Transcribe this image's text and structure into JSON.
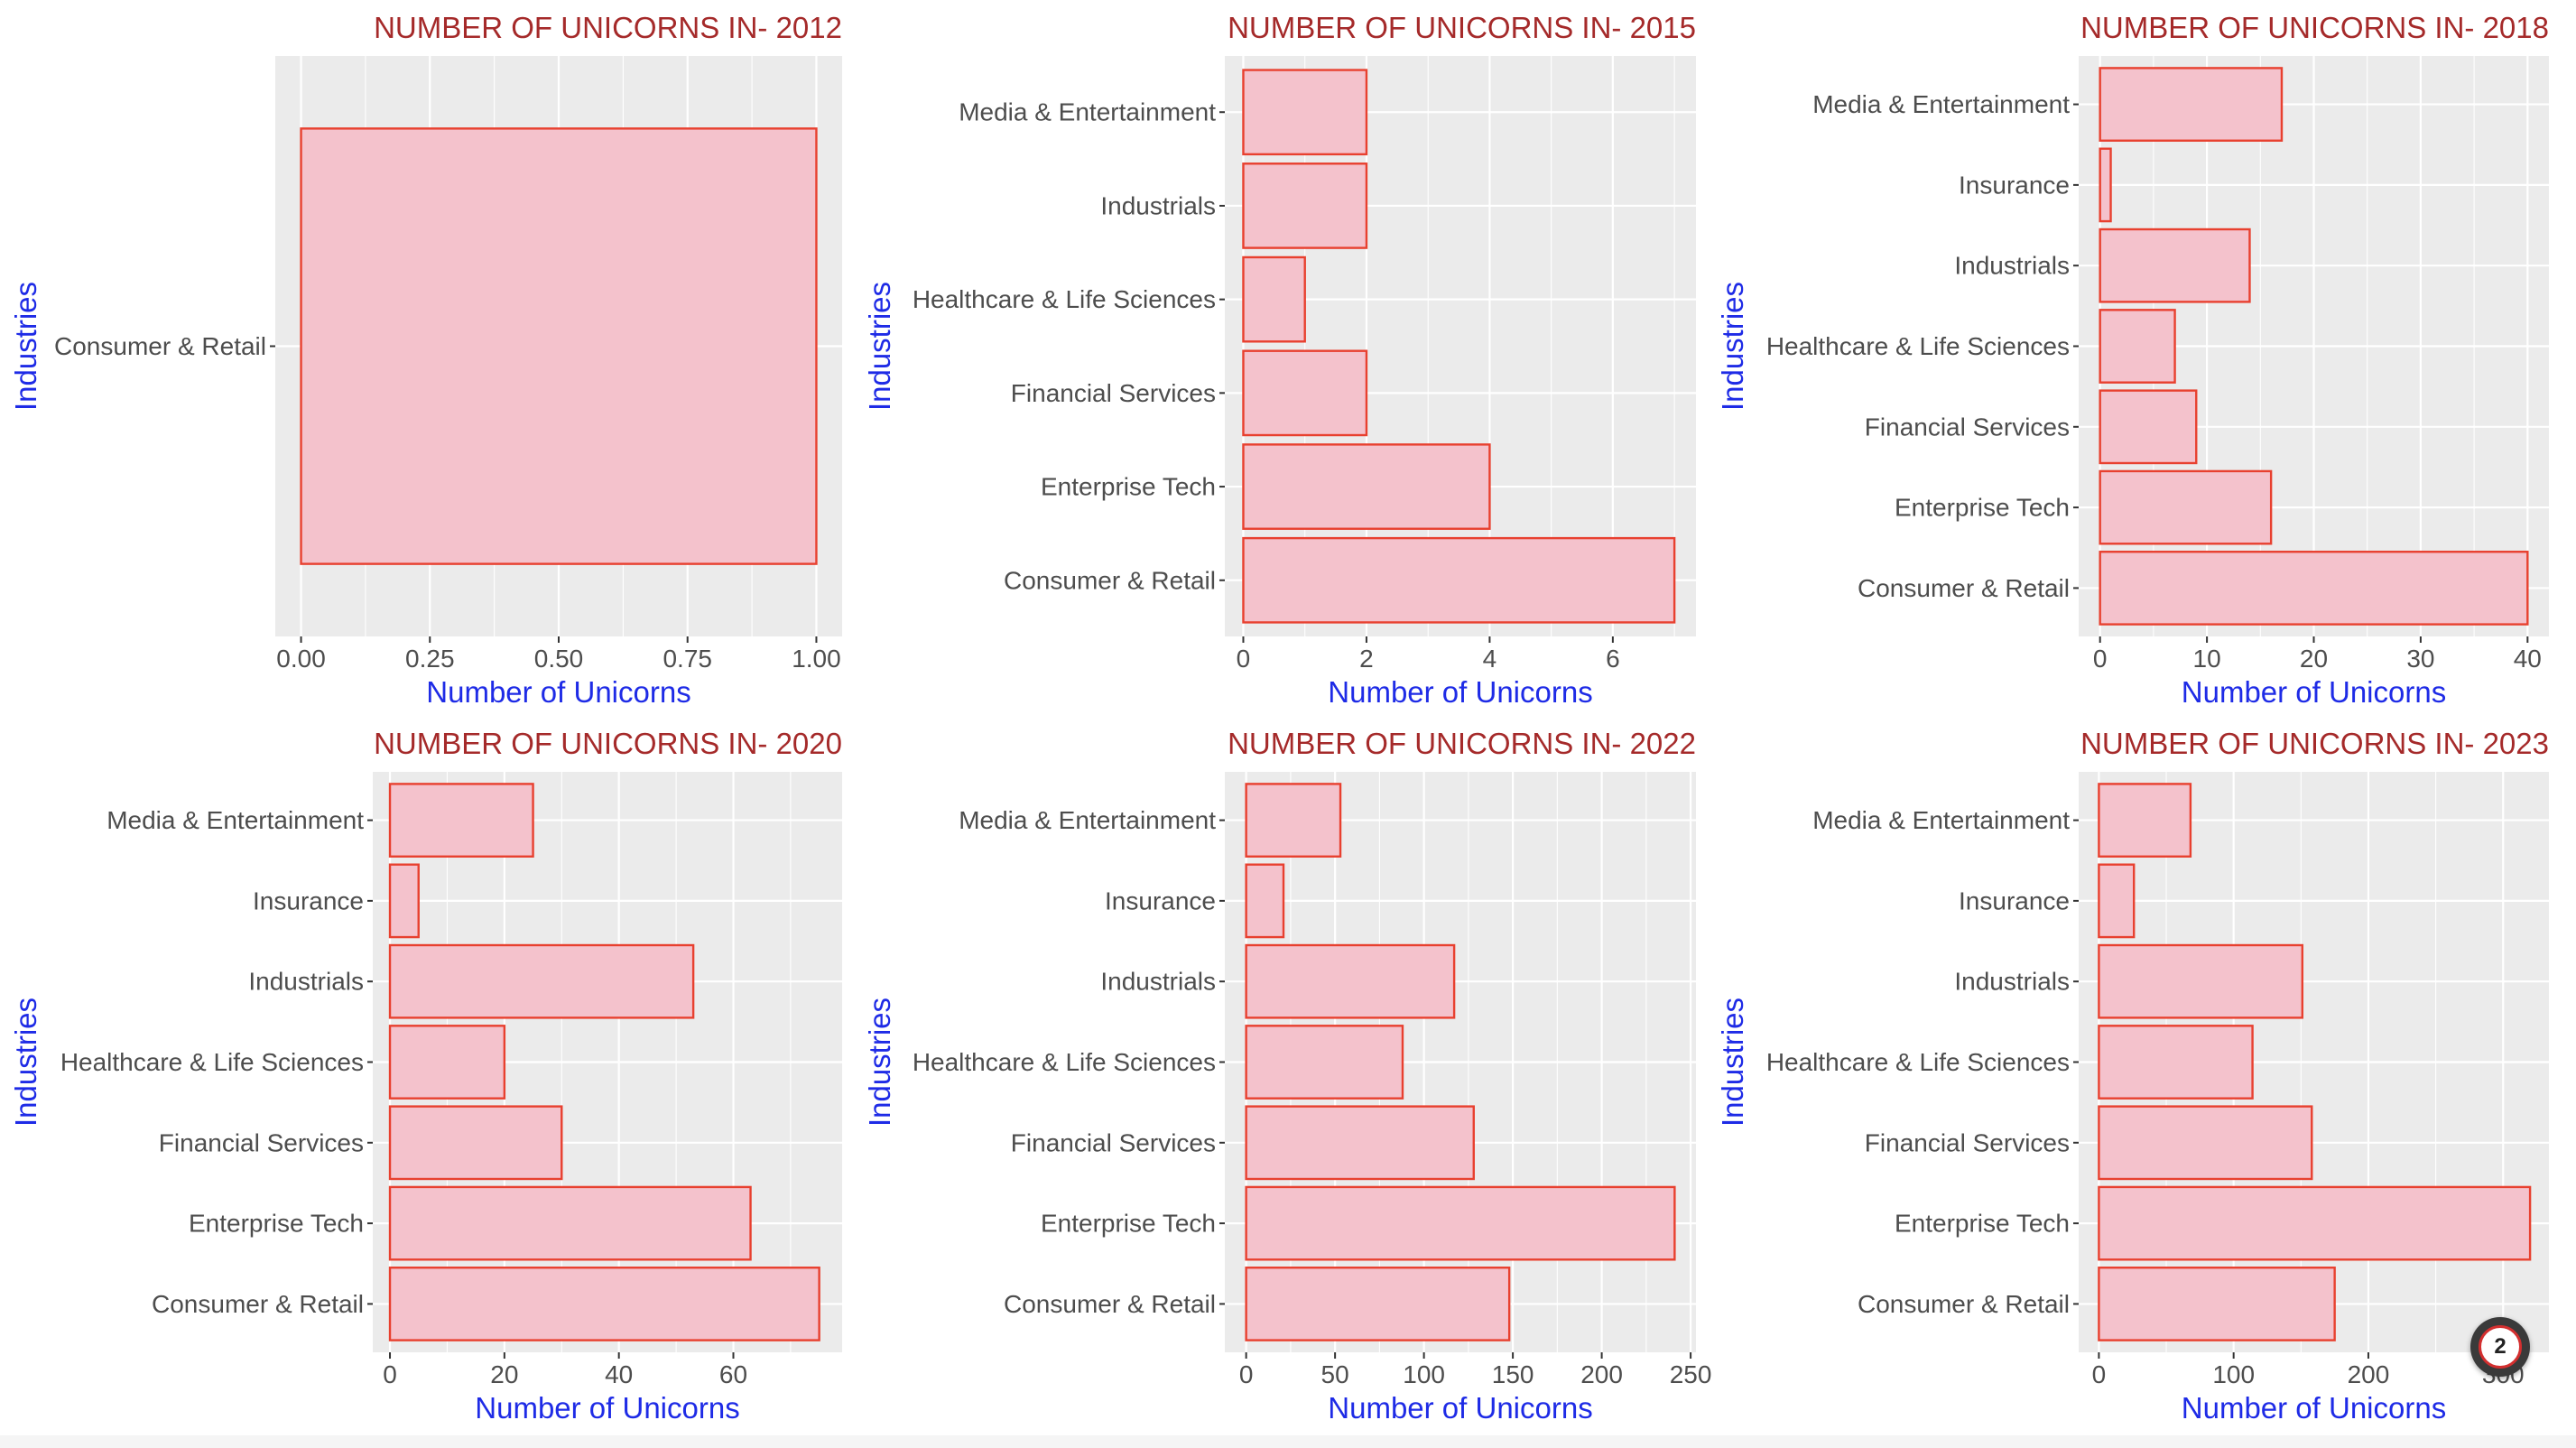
{
  "colors": {
    "bar_fill": "#f4c2cc",
    "bar_stroke": "#e8402f",
    "title": "#a52a2a",
    "axis_label": "#1e2be6",
    "panel": "#ebebeb"
  },
  "page_badge": {
    "label": "2"
  },
  "chart_data": [
    {
      "type": "bar",
      "orientation": "horizontal",
      "title": "NUMBER OF UNICORNS IN- 2012",
      "xlabel": "Number of Unicorns",
      "ylabel": "Industries",
      "categories": [
        "Consumer & Retail"
      ],
      "values": [
        1
      ],
      "xlim": [
        -0.05,
        1.05
      ],
      "xticks": [
        0,
        0.25,
        0.5,
        0.75,
        1
      ],
      "xtick_labels": [
        "0.00",
        "0.25",
        "0.50",
        "0.75",
        "1.00"
      ],
      "grid": true
    },
    {
      "type": "bar",
      "orientation": "horizontal",
      "title": "NUMBER OF UNICORNS IN- 2015",
      "xlabel": "Number of Unicorns",
      "ylabel": "Industries",
      "categories": [
        "Consumer & Retail",
        "Enterprise Tech",
        "Financial Services",
        "Healthcare & Life Sciences",
        "Industrials",
        "Media & Entertainment"
      ],
      "values": [
        7,
        4,
        2,
        1,
        2,
        2
      ],
      "xlim": [
        -0.3,
        7.35
      ],
      "xticks": [
        0,
        2,
        4,
        6
      ],
      "xtick_labels": [
        "0",
        "2",
        "4",
        "6"
      ],
      "grid": true
    },
    {
      "type": "bar",
      "orientation": "horizontal",
      "title": "NUMBER OF UNICORNS IN- 2018",
      "xlabel": "Number of Unicorns",
      "ylabel": "Industries",
      "categories": [
        "Consumer & Retail",
        "Enterprise Tech",
        "Financial Services",
        "Healthcare & Life Sciences",
        "Industrials",
        "Insurance",
        "Media & Entertainment"
      ],
      "values": [
        40,
        16,
        9,
        7,
        14,
        1,
        17
      ],
      "xlim": [
        -2,
        42
      ],
      "xticks": [
        0,
        10,
        20,
        30,
        40
      ],
      "xtick_labels": [
        "0",
        "10",
        "20",
        "30",
        "40"
      ],
      "grid": true
    },
    {
      "type": "bar",
      "orientation": "horizontal",
      "title": "NUMBER OF UNICORNS IN- 2020",
      "xlabel": "Number of Unicorns",
      "ylabel": "Industries",
      "categories": [
        "Consumer & Retail",
        "Enterprise Tech",
        "Financial Services",
        "Healthcare & Life Sciences",
        "Industrials",
        "Insurance",
        "Media & Entertainment"
      ],
      "values": [
        75,
        63,
        30,
        20,
        53,
        5,
        25
      ],
      "xlim": [
        -3,
        79
      ],
      "xticks": [
        0,
        20,
        40,
        60
      ],
      "xtick_labels": [
        "0",
        "20",
        "40",
        "60"
      ],
      "grid": true
    },
    {
      "type": "bar",
      "orientation": "horizontal",
      "title": "NUMBER OF UNICORNS IN- 2022",
      "xlabel": "Number of Unicorns",
      "ylabel": "Industries",
      "categories": [
        "Consumer & Retail",
        "Enterprise Tech",
        "Financial Services",
        "Healthcare & Life Sciences",
        "Industrials",
        "Insurance",
        "Media & Entertainment"
      ],
      "values": [
        148,
        241,
        128,
        88,
        117,
        21,
        53
      ],
      "xlim": [
        -12,
        253
      ],
      "xticks": [
        0,
        50,
        100,
        150,
        200,
        250
      ],
      "xtick_labels": [
        "0",
        "50",
        "100",
        "150",
        "200",
        "250"
      ],
      "grid": true
    },
    {
      "type": "bar",
      "orientation": "horizontal",
      "title": "NUMBER OF UNICORNS IN- 2023",
      "xlabel": "Number of Unicorns",
      "ylabel": "Industries",
      "categories": [
        "Consumer & Retail",
        "Enterprise Tech",
        "Financial Services",
        "Healthcare & Life Sciences",
        "Industrials",
        "Insurance",
        "Media & Entertainment"
      ],
      "values": [
        175,
        320,
        158,
        114,
        151,
        26,
        68
      ],
      "xlim": [
        -15,
        334
      ],
      "xticks": [
        0,
        100,
        200,
        300
      ],
      "xtick_labels": [
        "0",
        "100",
        "200",
        "300"
      ],
      "grid": true
    }
  ]
}
